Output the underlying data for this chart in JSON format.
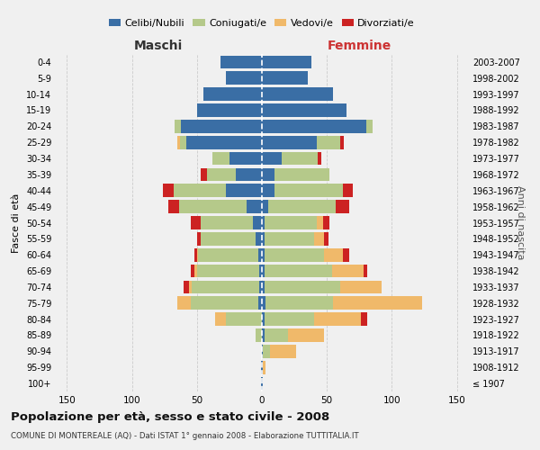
{
  "age_groups": [
    "100+",
    "95-99",
    "90-94",
    "85-89",
    "80-84",
    "75-79",
    "70-74",
    "65-69",
    "60-64",
    "55-59",
    "50-54",
    "45-49",
    "40-44",
    "35-39",
    "30-34",
    "25-29",
    "20-24",
    "15-19",
    "10-14",
    "5-9",
    "0-4"
  ],
  "birth_years": [
    "≤ 1907",
    "1908-1912",
    "1913-1917",
    "1918-1922",
    "1923-1927",
    "1928-1932",
    "1933-1937",
    "1938-1942",
    "1943-1947",
    "1948-1952",
    "1953-1957",
    "1958-1962",
    "1963-1967",
    "1968-1972",
    "1973-1977",
    "1978-1982",
    "1983-1987",
    "1988-1992",
    "1993-1997",
    "1998-2002",
    "2003-2007"
  ],
  "maschi": {
    "celibi": [
      1,
      1,
      0,
      0,
      0,
      3,
      2,
      2,
      3,
      5,
      7,
      12,
      28,
      20,
      25,
      58,
      62,
      50,
      45,
      28,
      32
    ],
    "coniugati": [
      0,
      0,
      0,
      5,
      28,
      52,
      52,
      48,
      46,
      42,
      40,
      52,
      40,
      22,
      13,
      5,
      5,
      0,
      0,
      0,
      0
    ],
    "vedovi": [
      0,
      0,
      0,
      0,
      8,
      10,
      2,
      2,
      1,
      0,
      0,
      0,
      0,
      0,
      0,
      2,
      0,
      0,
      0,
      0,
      0
    ],
    "divorziati": [
      0,
      0,
      0,
      0,
      0,
      0,
      4,
      3,
      2,
      3,
      8,
      8,
      8,
      5,
      0,
      0,
      0,
      0,
      0,
      0,
      0
    ]
  },
  "femmine": {
    "nubili": [
      1,
      1,
      1,
      2,
      2,
      3,
      2,
      2,
      2,
      2,
      2,
      5,
      10,
      10,
      15,
      42,
      80,
      65,
      55,
      35,
      38
    ],
    "coniugate": [
      0,
      0,
      5,
      18,
      38,
      52,
      58,
      52,
      46,
      38,
      40,
      52,
      52,
      42,
      28,
      18,
      5,
      0,
      0,
      0,
      0
    ],
    "vedove": [
      0,
      2,
      20,
      28,
      36,
      68,
      32,
      24,
      14,
      8,
      5,
      0,
      0,
      0,
      0,
      0,
      0,
      0,
      0,
      0,
      0
    ],
    "divorziate": [
      0,
      0,
      0,
      0,
      5,
      0,
      0,
      3,
      5,
      3,
      5,
      10,
      8,
      0,
      3,
      3,
      0,
      0,
      0,
      0,
      0
    ]
  },
  "colors": {
    "celibi": "#3a6ea5",
    "coniugati": "#b5c98a",
    "vedovi": "#f0b96a",
    "divorziati": "#cc2222"
  },
  "xlim": 160,
  "title": "Popolazione per età, sesso e stato civile - 2008",
  "subtitle": "COMUNE DI MONTEREALE (AQ) - Dati ISTAT 1° gennaio 2008 - Elaborazione TUTTITALIA.IT",
  "ylabel_left": "Fasce di età",
  "ylabel_right": "Anni di nascita",
  "label_maschi": "Maschi",
  "label_femmine": "Femmine",
  "bg_color": "#f0f0f0",
  "grid_color": "#cccccc",
  "legend": [
    "Celibi/Nubili",
    "Coniugati/e",
    "Vedovi/e",
    "Divorziati/e"
  ]
}
